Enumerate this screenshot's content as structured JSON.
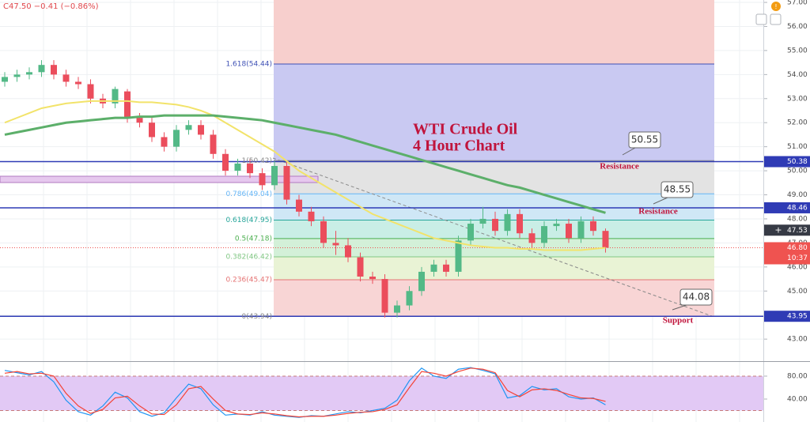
{
  "header": {
    "ticker_info": "C47.50 −0.41 (−0.86%)"
  },
  "chart_data": [
    {
      "type": "candlestick",
      "title": "WTI Crude Oil",
      "subtitle": "4 Hour Chart",
      "ylim": [
        42.15,
        57.1
      ],
      "yticks": [
        {
          "value": 43,
          "label": "43.00"
        },
        {
          "value": 44,
          "label": "44.00"
        },
        {
          "value": 45,
          "label": "45.00"
        },
        {
          "value": 46,
          "label": "46.00"
        },
        {
          "value": 47,
          "label": "47.00"
        },
        {
          "value": 48,
          "label": "48.00"
        },
        {
          "value": 49,
          "label": "49.00"
        },
        {
          "value": 50,
          "label": "50.00"
        },
        {
          "value": 51,
          "label": "51.00"
        },
        {
          "value": 52,
          "label": "52.00"
        },
        {
          "value": 53,
          "label": "53.00"
        },
        {
          "value": 54,
          "label": "54.00"
        },
        {
          "value": 55,
          "label": "55.00"
        },
        {
          "value": 56,
          "label": "56.00"
        },
        {
          "value": 57,
          "label": "57.00"
        }
      ],
      "grid": true,
      "up_color": "#53b987",
      "down_color": "#eb4d5c",
      "open": [
        53.7,
        53.9,
        54.0,
        54.1,
        54.4,
        54.0,
        53.7,
        53.6,
        53.0,
        52.8,
        53.3,
        52.2,
        52.0,
        51.4,
        51.0,
        51.7,
        51.9,
        51.5,
        50.7,
        50.0,
        50.3,
        49.9,
        49.4,
        50.2,
        48.8,
        48.3,
        47.9,
        47.0,
        46.9,
        46.4,
        45.6,
        45.5,
        44.1,
        44.4,
        45.0,
        45.8,
        46.1,
        45.8,
        47.1,
        47.8,
        48.0,
        47.5,
        48.2,
        47.4,
        47.0,
        47.7,
        47.8,
        47.2,
        47.9,
        47.5
      ],
      "high": [
        54.1,
        54.2,
        54.3,
        54.6,
        54.6,
        54.2,
        53.9,
        53.8,
        53.2,
        53.5,
        53.4,
        52.4,
        52.2,
        51.6,
        51.9,
        52.1,
        52.1,
        51.7,
        50.9,
        50.5,
        50.5,
        50.1,
        50.4,
        50.4,
        49.0,
        48.5,
        48.1,
        47.5,
        47.2,
        46.6,
        45.8,
        45.7,
        44.6,
        45.2,
        46.0,
        46.3,
        46.3,
        47.3,
        48.0,
        48.5,
        48.3,
        48.4,
        48.4,
        47.6,
        47.9,
        48.0,
        48.0,
        48.1,
        48.1,
        47.6
      ],
      "low": [
        53.5,
        53.7,
        53.8,
        53.9,
        53.8,
        53.5,
        53.4,
        52.8,
        52.6,
        52.6,
        52.0,
        51.8,
        51.2,
        50.8,
        50.8,
        51.5,
        51.3,
        50.5,
        49.8,
        49.8,
        49.7,
        49.2,
        49.2,
        48.6,
        48.1,
        47.7,
        46.8,
        46.5,
        46.2,
        45.4,
        45.3,
        43.9,
        43.9,
        44.2,
        44.8,
        45.6,
        45.6,
        45.6,
        46.9,
        47.6,
        47.3,
        47.3,
        47.2,
        46.8,
        46.8,
        47.5,
        47.0,
        47.0,
        47.3,
        46.6
      ],
      "close": [
        53.9,
        54.0,
        54.1,
        54.4,
        54.0,
        53.7,
        53.6,
        53.0,
        52.8,
        53.4,
        52.2,
        52.0,
        51.4,
        51.0,
        51.7,
        51.9,
        51.5,
        50.7,
        50.0,
        50.3,
        49.9,
        49.4,
        50.2,
        48.8,
        48.3,
        47.9,
        47.0,
        46.9,
        46.4,
        45.6,
        45.5,
        44.1,
        44.4,
        45.0,
        45.8,
        46.1,
        45.8,
        47.1,
        47.8,
        48.0,
        47.5,
        48.2,
        47.4,
        47.0,
        47.7,
        47.8,
        47.2,
        47.9,
        47.5,
        46.8
      ],
      "moving_averages": [
        {
          "color": "#f2e36a",
          "values": [
            52.0,
            52.2,
            52.4,
            52.6,
            52.7,
            52.8,
            52.85,
            52.9,
            52.9,
            52.9,
            52.9,
            52.85,
            52.85,
            52.8,
            52.75,
            52.65,
            52.5,
            52.3,
            52.0,
            51.7,
            51.4,
            51.1,
            50.8,
            50.4,
            50.0,
            49.7,
            49.4,
            49.1,
            48.8,
            48.5,
            48.2,
            48.0,
            47.8,
            47.6,
            47.4,
            47.2,
            47.1,
            47.0,
            46.9,
            46.85,
            46.8,
            46.8,
            46.75,
            46.75,
            46.7,
            46.7,
            46.7,
            46.7,
            46.75,
            46.8
          ]
        },
        {
          "color": "#5caf6a",
          "values": [
            51.5,
            51.6,
            51.7,
            51.8,
            51.9,
            52.0,
            52.05,
            52.1,
            52.15,
            52.2,
            52.2,
            52.25,
            52.25,
            52.3,
            52.3,
            52.3,
            52.3,
            52.3,
            52.25,
            52.2,
            52.15,
            52.1,
            52.0,
            51.9,
            51.8,
            51.7,
            51.6,
            51.5,
            51.35,
            51.2,
            51.05,
            50.9,
            50.75,
            50.6,
            50.45,
            50.3,
            50.15,
            50.0,
            49.85,
            49.7,
            49.55,
            49.4,
            49.3,
            49.15,
            49.0,
            48.85,
            48.7,
            48.55,
            48.4,
            48.25
          ]
        }
      ],
      "price_lines": {
        "values": [
          50.38,
          48.46,
          43.95
        ],
        "color": "#2f3bb5"
      },
      "last_price": {
        "value": 46.8,
        "value_label": "46.80",
        "countdown": "10:37",
        "color": "#ef5350"
      },
      "crosshair_price": {
        "value": 47.53,
        "color": "#363a45"
      },
      "top_zone_color": "#f7cfcd",
      "fib_levels": [
        {
          "value": 54.44,
          "label": "1.618(54.44)",
          "color": "#3f51b5",
          "zone_color": "#c9c9f2"
        },
        {
          "value": 50.42,
          "label": "1(50.42)",
          "color": "#888888",
          "zone_color": "#e3e3e3"
        },
        {
          "value": 49.04,
          "label": "0.786(49.04)",
          "color": "#64b5f6",
          "zone_color": "#cfe7f6"
        },
        {
          "value": 47.95,
          "label": "0.618(47.95)",
          "color": "#26a69a",
          "zone_color": "#c9eee6"
        },
        {
          "value": 47.18,
          "label": "0.5(47.18)",
          "color": "#4caf50",
          "zone_color": "#d3f0d8"
        },
        {
          "value": 46.42,
          "label": "0.382(46.42)",
          "color": "#81c784",
          "zone_color": "#e9f3d5"
        },
        {
          "value": 45.47,
          "label": "0.236(45.47)",
          "color": "#e57373",
          "zone_color": "#f8d5d5"
        },
        {
          "value": 43.94,
          "label": "0(43.94)",
          "color": "#888888"
        }
      ],
      "callouts": [
        {
          "value": 50.55,
          "note": "Resistance"
        },
        {
          "value": 48.55,
          "note": "Resistance"
        },
        {
          "value": 44.08,
          "note": "Support"
        }
      ]
    },
    {
      "type": "stochastic",
      "ylim": [
        0,
        102
      ],
      "yticks": [
        {
          "value": 40,
          "label": "40.00"
        },
        {
          "value": 80,
          "label": "80.00"
        }
      ],
      "band": [
        20,
        80
      ],
      "band_color": "#e2c9f5",
      "series": [
        {
          "color": "#2196f3",
          "values": [
            90,
            86,
            82,
            88,
            70,
            38,
            18,
            12,
            28,
            52,
            42,
            18,
            10,
            16,
            42,
            66,
            58,
            30,
            12,
            14,
            12,
            18,
            12,
            10,
            8,
            11,
            10,
            14,
            18,
            16,
            20,
            24,
            38,
            72,
            94,
            80,
            76,
            92,
            95,
            90,
            84,
            42,
            46,
            62,
            56,
            58,
            44,
            40,
            42,
            30
          ]
        },
        {
          "color": "#f44336",
          "values": [
            85,
            88,
            84,
            85,
            80,
            50,
            28,
            15,
            22,
            42,
            45,
            28,
            14,
            13,
            30,
            58,
            62,
            40,
            20,
            14,
            13,
            16,
            14,
            11,
            9,
            10,
            10,
            12,
            15,
            17,
            18,
            22,
            30,
            60,
            88,
            85,
            80,
            88,
            94,
            92,
            86,
            55,
            44,
            56,
            58,
            55,
            48,
            42,
            41,
            36
          ]
        }
      ]
    }
  ]
}
